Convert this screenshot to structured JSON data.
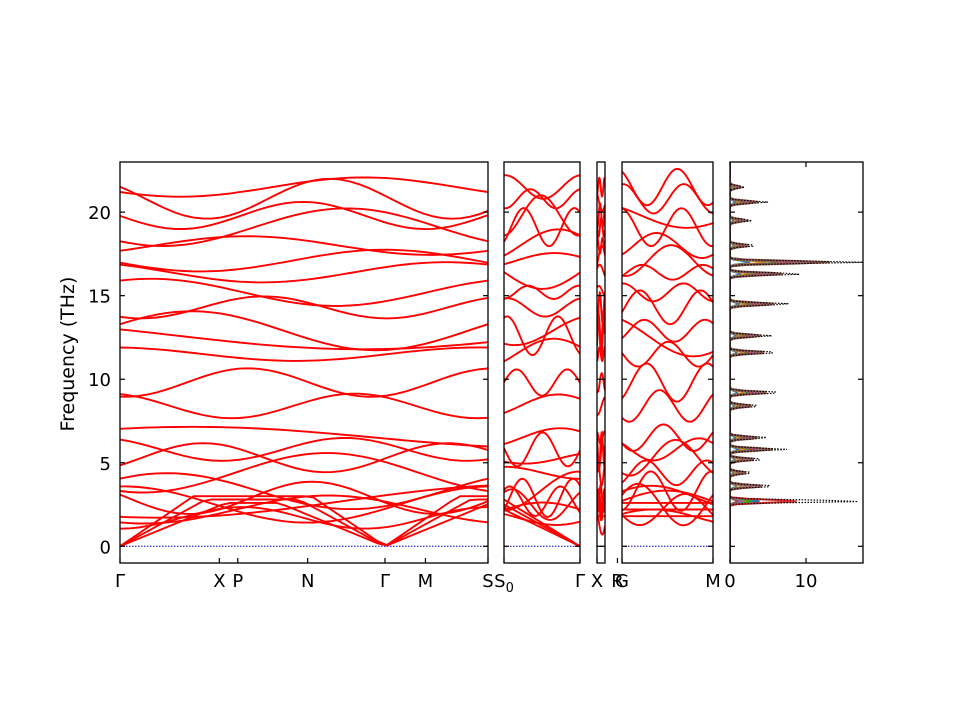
{
  "chart_data": {
    "type": "line",
    "title": "",
    "ylabel": "Frequency (THz)",
    "ylim": [
      -1.0,
      23.0
    ],
    "yticks": [
      0,
      5,
      10,
      15,
      20
    ],
    "grid": false,
    "band_color": "#ff0000",
    "zero_line_color": "#0000cc",
    "segments": [
      {
        "name": "segment-1",
        "ticks": [
          {
            "label": "Γ",
            "x": 0.0
          },
          {
            "label": "X",
            "x": 0.27
          },
          {
            "label": "P",
            "x": 0.32
          },
          {
            "label": "N",
            "x": 0.51
          },
          {
            "label": "Γ",
            "x": 0.72
          },
          {
            "label": "M",
            "x": 0.83
          },
          {
            "label": "S",
            "x": 1.0
          }
        ],
        "end_freqs_gamma": [
          0,
          0,
          0,
          1.7,
          2.2,
          2.5,
          2.7,
          2.9,
          3.3,
          4.4,
          5.3,
          5.8,
          6.5,
          8.4,
          9.8,
          11.5,
          12.6,
          12.9,
          14.3,
          15.2,
          16.4,
          17.1,
          18.0,
          19.1,
          19.8,
          20.8,
          21.5
        ]
      },
      {
        "name": "segment-2",
        "ticks": [
          {
            "label": "S",
            "sub": "0",
            "x": 0.0
          },
          {
            "label": "Γ",
            "x": 1.0
          }
        ]
      },
      {
        "name": "segment-3",
        "ticks": [
          {
            "label": "X",
            "x": 0.0
          }
        ]
      },
      {
        "name": "segment-4",
        "ticks": [
          {
            "label": "R",
            "x": -0.05
          },
          {
            "label": "G",
            "x": 0.0
          },
          {
            "label": "M",
            "x": 1.0
          }
        ]
      }
    ],
    "dos": {
      "xlim": [
        0,
        17.5
      ],
      "xticks": [
        0,
        10
      ],
      "total_line": "black dotted",
      "projected_colors": [
        "#1f77b4",
        "#ff7f0e",
        "#2ca02c",
        "#d62728",
        "#9467bd",
        "#8c564b"
      ],
      "peaks": [
        {
          "freq": 2.7,
          "total": 17.5,
          "proj": [
            4.0,
            2.0,
            3.0,
            9.0,
            1.5,
            1.0
          ]
        },
        {
          "freq": 3.6,
          "total": 6.0
        },
        {
          "freq": 4.4,
          "total": 3.0
        },
        {
          "freq": 5.2,
          "total": 4.5
        },
        {
          "freq": 5.8,
          "total": 7.5
        },
        {
          "freq": 6.5,
          "total": 5.0
        },
        {
          "freq": 8.4,
          "total": 4.0
        },
        {
          "freq": 9.2,
          "total": 7.0
        },
        {
          "freq": 11.6,
          "total": 6.5
        },
        {
          "freq": 12.6,
          "total": 5.5
        },
        {
          "freq": 14.5,
          "total": 8.0
        },
        {
          "freq": 16.3,
          "total": 9.5
        },
        {
          "freq": 17.0,
          "total": 17.5
        },
        {
          "freq": 18.0,
          "total": 3.5
        },
        {
          "freq": 19.5,
          "total": 3.0
        },
        {
          "freq": 20.6,
          "total": 5.0
        },
        {
          "freq": 21.5,
          "total": 2.0
        }
      ]
    }
  }
}
